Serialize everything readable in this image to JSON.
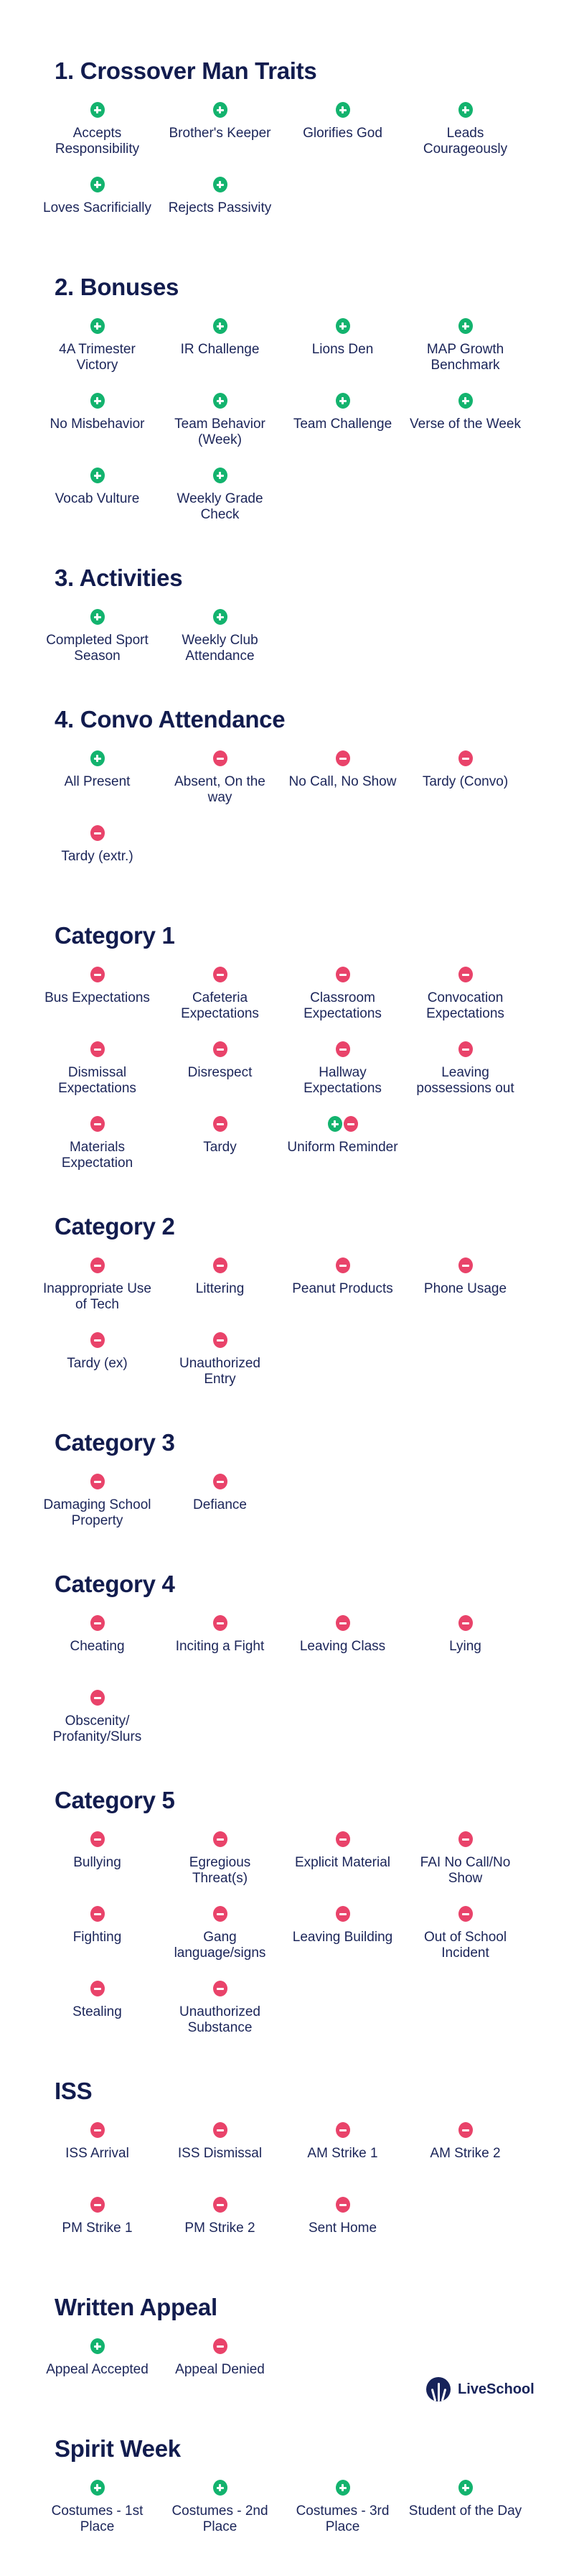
{
  "colors": {
    "heading": "#121c4e",
    "label": "#1b2559",
    "positive": "#13b36e",
    "negative": "#e9436a"
  },
  "sections": [
    {
      "title": "1. Crossover Man Traits",
      "items": [
        {
          "label": "Accepts Responsibility",
          "icon": "plus"
        },
        {
          "label": "Brother's Keeper",
          "icon": "plus"
        },
        {
          "label": "Glorifies God",
          "icon": "plus"
        },
        {
          "label": "Leads Courageously",
          "icon": "plus"
        },
        {
          "label": "Loves Sacrificially",
          "icon": "plus"
        },
        {
          "label": "Rejects Passivity",
          "icon": "plus"
        }
      ]
    },
    {
      "title": "2. Bonuses",
      "items": [
        {
          "label": "4A Trimester Victory",
          "icon": "plus"
        },
        {
          "label": "IR Challenge",
          "icon": "plus"
        },
        {
          "label": "Lions Den",
          "icon": "plus"
        },
        {
          "label": "MAP Growth Benchmark",
          "icon": "plus"
        },
        {
          "label": "No Misbehavior",
          "icon": "plus"
        },
        {
          "label": "Team Behavior (Week)",
          "icon": "plus"
        },
        {
          "label": "Team Challenge",
          "icon": "plus"
        },
        {
          "label": "Verse of the Week",
          "icon": "plus"
        },
        {
          "label": "Vocab Vulture",
          "icon": "plus"
        },
        {
          "label": "Weekly Grade Check",
          "icon": "plus"
        }
      ]
    },
    {
      "title": "3. Activities",
      "items": [
        {
          "label": "Completed Sport Season",
          "icon": "plus"
        },
        {
          "label": "Weekly Club Attendance",
          "icon": "plus"
        }
      ]
    },
    {
      "title": "4. Convo Attendance",
      "items": [
        {
          "label": "All Present",
          "icon": "plus"
        },
        {
          "label": "Absent, On the way",
          "icon": "minus"
        },
        {
          "label": "No Call, No Show",
          "icon": "minus"
        },
        {
          "label": "Tardy (Convo)",
          "icon": "minus"
        },
        {
          "label": "Tardy (extr.)",
          "icon": "minus"
        }
      ]
    },
    {
      "title": "Category 1",
      "items": [
        {
          "label": "Bus Expectations",
          "icon": "minus"
        },
        {
          "label": "Cafeteria Expectations",
          "icon": "minus"
        },
        {
          "label": "Classroom Expectations",
          "icon": "minus"
        },
        {
          "label": "Convocation Expectations",
          "icon": "minus"
        },
        {
          "label": "Dismissal Expectations",
          "icon": "minus"
        },
        {
          "label": "Disrespect",
          "icon": "minus"
        },
        {
          "label": "Hallway Expectations",
          "icon": "minus"
        },
        {
          "label": "Leaving possessions out",
          "icon": "minus"
        },
        {
          "label": "Materials Expectation",
          "icon": "minus"
        },
        {
          "label": "Tardy",
          "icon": "minus"
        },
        {
          "label": "Uniform Reminder",
          "icon": "both"
        }
      ]
    },
    {
      "title": "Category 2",
      "items": [
        {
          "label": "Inappropriate Use of Tech",
          "icon": "minus"
        },
        {
          "label": "Littering",
          "icon": "minus"
        },
        {
          "label": "Peanut Products",
          "icon": "minus"
        },
        {
          "label": "Phone Usage",
          "icon": "minus"
        },
        {
          "label": "Tardy (ex)",
          "icon": "minus"
        },
        {
          "label": "Unauthorized Entry",
          "icon": "minus"
        }
      ]
    },
    {
      "title": "Category 3",
      "items": [
        {
          "label": "Damaging School Property",
          "icon": "minus"
        },
        {
          "label": "Defiance",
          "icon": "minus"
        }
      ]
    },
    {
      "title": "Category 4",
      "items": [
        {
          "label": "Cheating",
          "icon": "minus"
        },
        {
          "label": "Inciting a Fight",
          "icon": "minus"
        },
        {
          "label": "Leaving Class",
          "icon": "minus"
        },
        {
          "label": "Lying",
          "icon": "minus"
        },
        {
          "label": "Obscenity/ Profanity/Slurs",
          "icon": "minus"
        }
      ]
    },
    {
      "title": "Category 5",
      "items": [
        {
          "label": "Bullying",
          "icon": "minus"
        },
        {
          "label": "Egregious Threat(s)",
          "icon": "minus"
        },
        {
          "label": "Explicit Material",
          "icon": "minus"
        },
        {
          "label": "FAI No Call/No Show",
          "icon": "minus"
        },
        {
          "label": "Fighting",
          "icon": "minus"
        },
        {
          "label": "Gang language/signs",
          "icon": "minus"
        },
        {
          "label": "Leaving Building",
          "icon": "minus"
        },
        {
          "label": "Out of School Incident",
          "icon": "minus"
        },
        {
          "label": "Stealing",
          "icon": "minus"
        },
        {
          "label": "Unauthorized Substance",
          "icon": "minus"
        }
      ]
    },
    {
      "title": "ISS",
      "items": [
        {
          "label": "ISS Arrival",
          "icon": "minus"
        },
        {
          "label": "ISS Dismissal",
          "icon": "minus"
        },
        {
          "label": "AM Strike 1",
          "icon": "minus"
        },
        {
          "label": "AM Strike 2",
          "icon": "minus"
        },
        {
          "label": "PM Strike 1",
          "icon": "minus"
        },
        {
          "label": "PM Strike 2",
          "icon": "minus"
        },
        {
          "label": "Sent Home",
          "icon": "minus"
        }
      ]
    },
    {
      "title": "Written Appeal",
      "items": [
        {
          "label": "Appeal Accepted",
          "icon": "plus"
        },
        {
          "label": "Appeal Denied",
          "icon": "minus"
        }
      ]
    },
    {
      "title": "Spirit Week",
      "items": [
        {
          "label": "Costumes - 1st Place",
          "icon": "plus"
        },
        {
          "label": "Costumes - 2nd Place",
          "icon": "plus"
        },
        {
          "label": "Costumes - 3rd Place",
          "icon": "plus"
        },
        {
          "label": "Student of the Day",
          "icon": "plus"
        }
      ]
    }
  ],
  "footer": {
    "logo_text": "LiveSchool",
    "logo_icon": "raised-hands-icon"
  }
}
